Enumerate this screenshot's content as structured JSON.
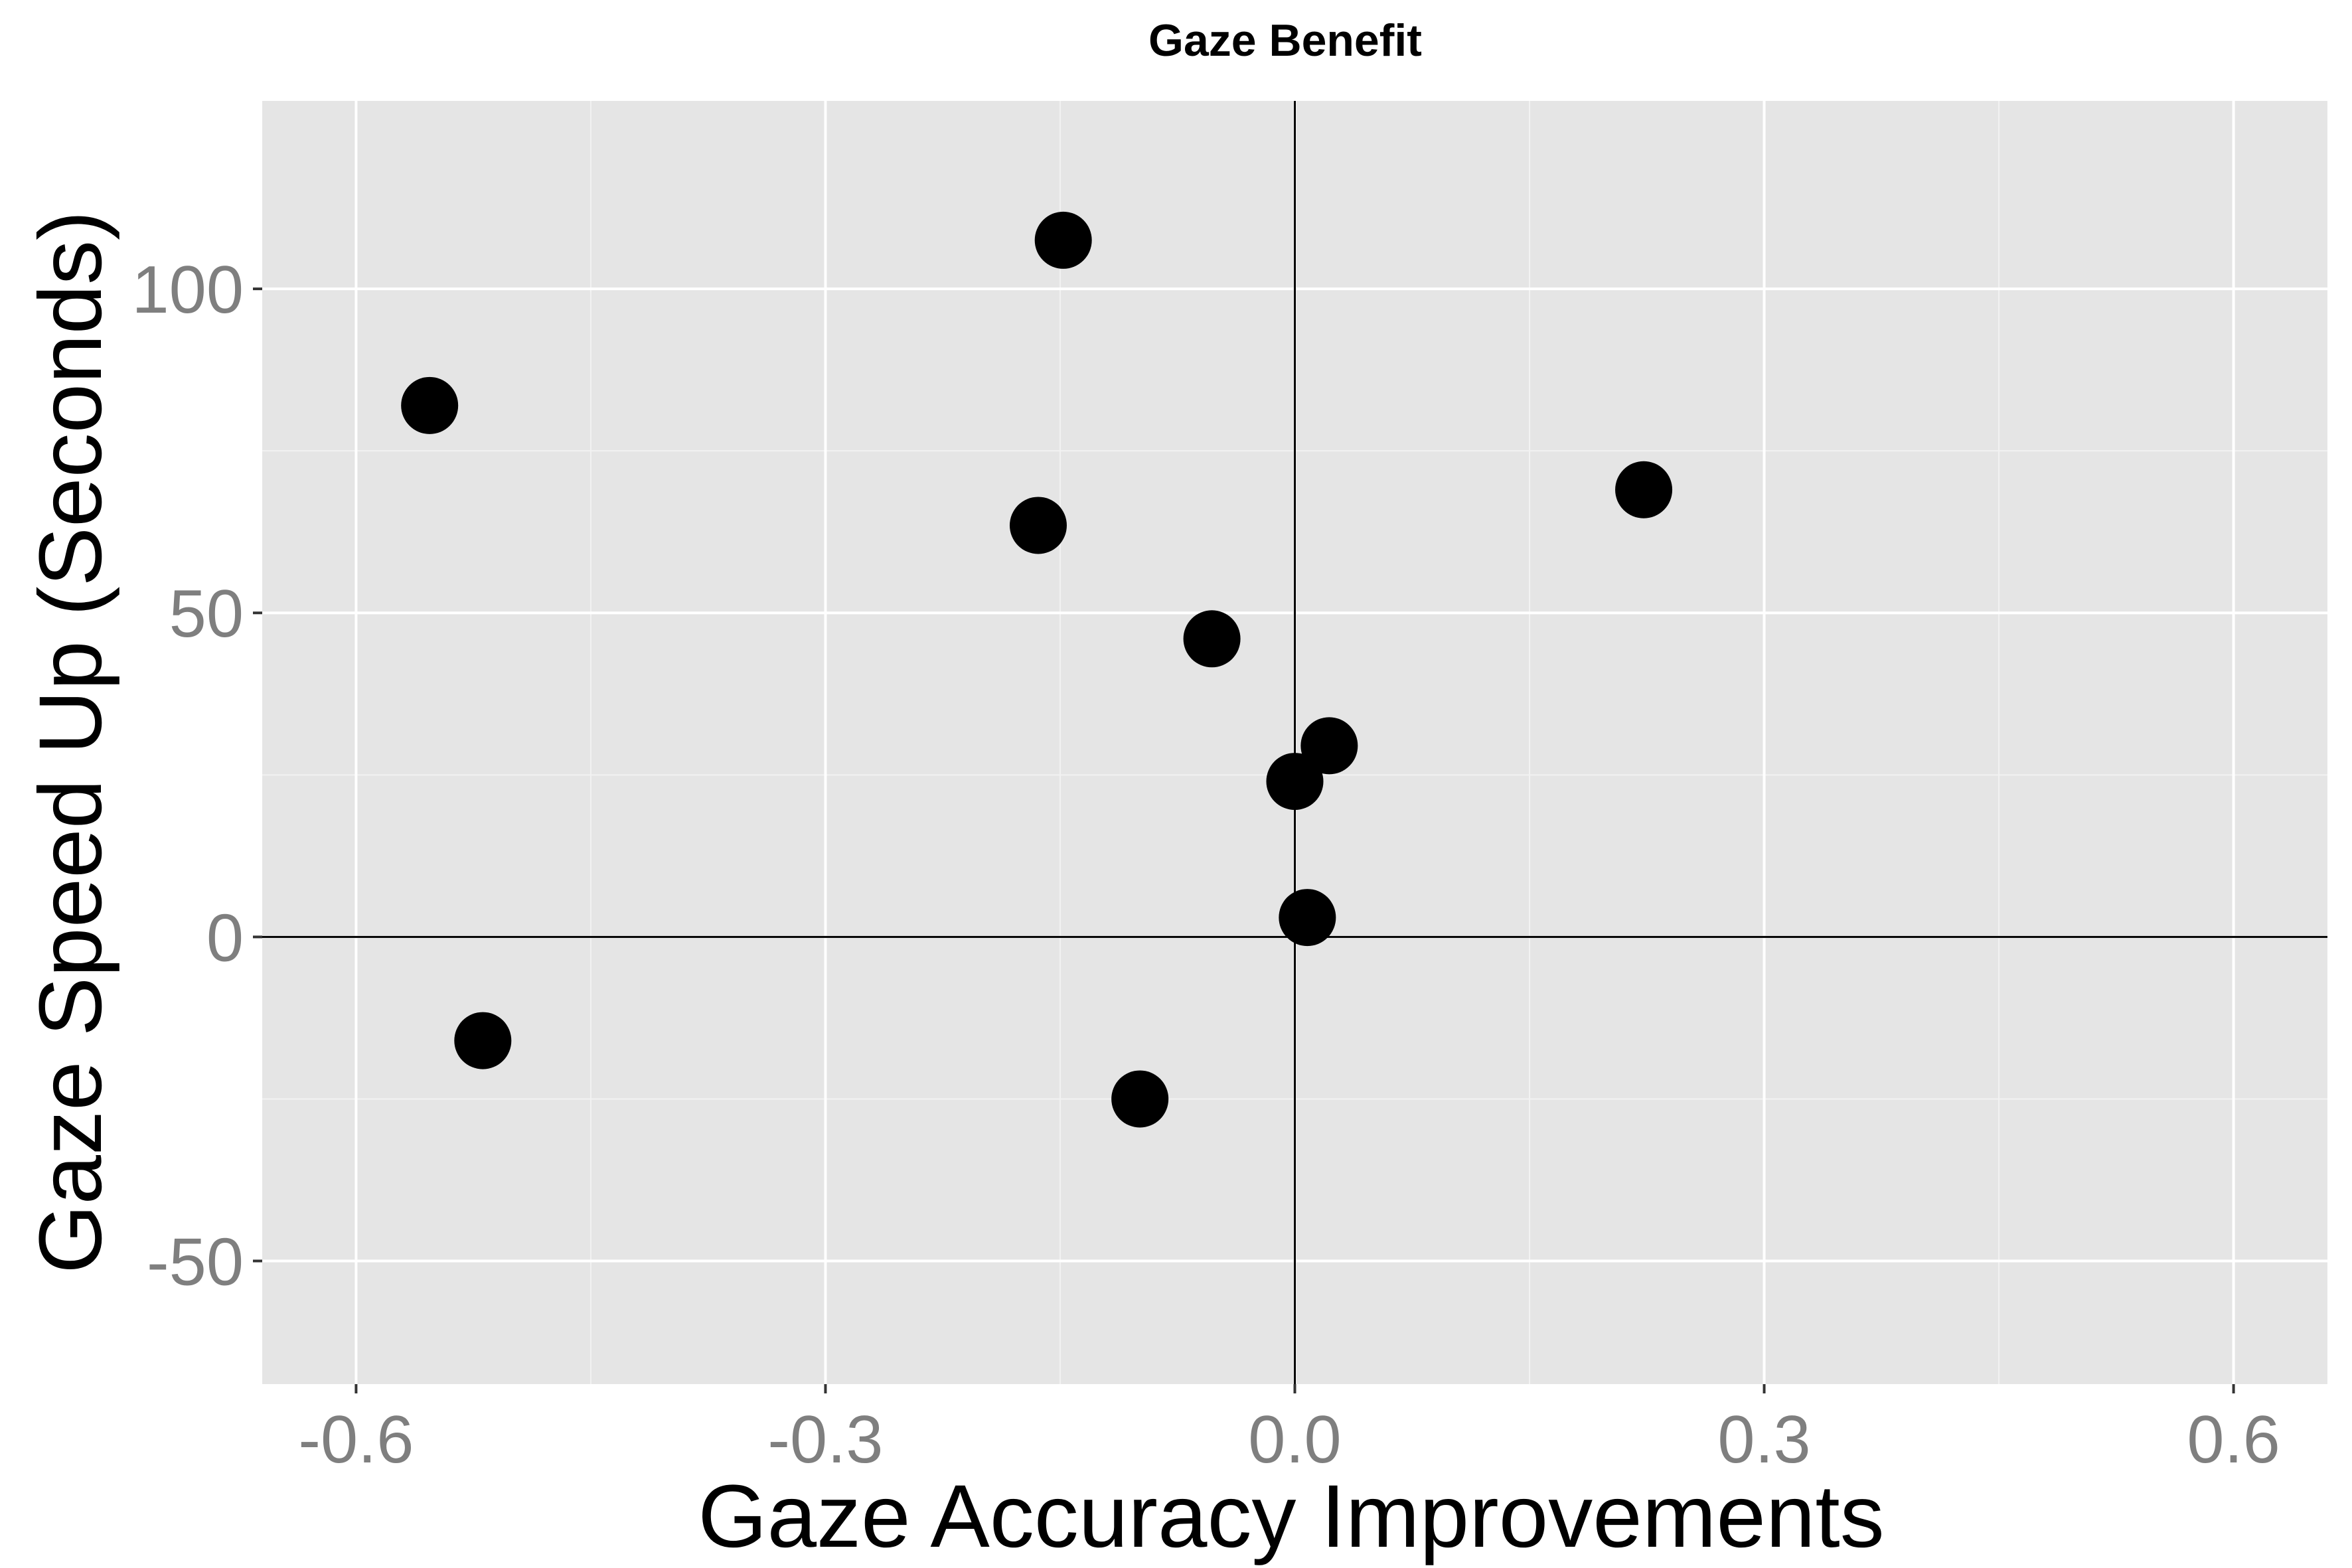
{
  "chart_data": {
    "type": "scatter",
    "title": "Gaze Benefit",
    "xlabel": "Gaze Accuracy Improvements",
    "ylabel": "Gaze Speed Up (Seconds)",
    "xlim": [
      -0.66,
      0.66
    ],
    "ylim": [
      -69,
      129
    ],
    "x_ticks": [
      -0.6,
      -0.3,
      0.0,
      0.3,
      0.6
    ],
    "x_tick_labels": [
      "-0.6",
      "-0.3",
      "0.0",
      "0.3",
      "0.6"
    ],
    "y_ticks": [
      -50,
      0,
      50,
      100
    ],
    "y_tick_labels": [
      "-50",
      "0",
      "50",
      "100"
    ],
    "grid": true,
    "reference_lines": {
      "x": 0,
      "y": 0
    },
    "colors": {
      "panel": "#e5e5e5",
      "grid": "#ffffff",
      "points": "#000000",
      "tick_text": "#7f7f7f"
    },
    "points": [
      {
        "x": -0.553,
        "y": 82
      },
      {
        "x": -0.519,
        "y": -16
      },
      {
        "x": -0.148,
        "y": 107.5
      },
      {
        "x": -0.164,
        "y": 63.5
      },
      {
        "x": -0.099,
        "y": -25
      },
      {
        "x": -0.053,
        "y": 46
      },
      {
        "x": 0.0,
        "y": 24
      },
      {
        "x": 0.022,
        "y": 29.5
      },
      {
        "x": 0.008,
        "y": 3
      },
      {
        "x": 0.223,
        "y": 69
      }
    ]
  }
}
